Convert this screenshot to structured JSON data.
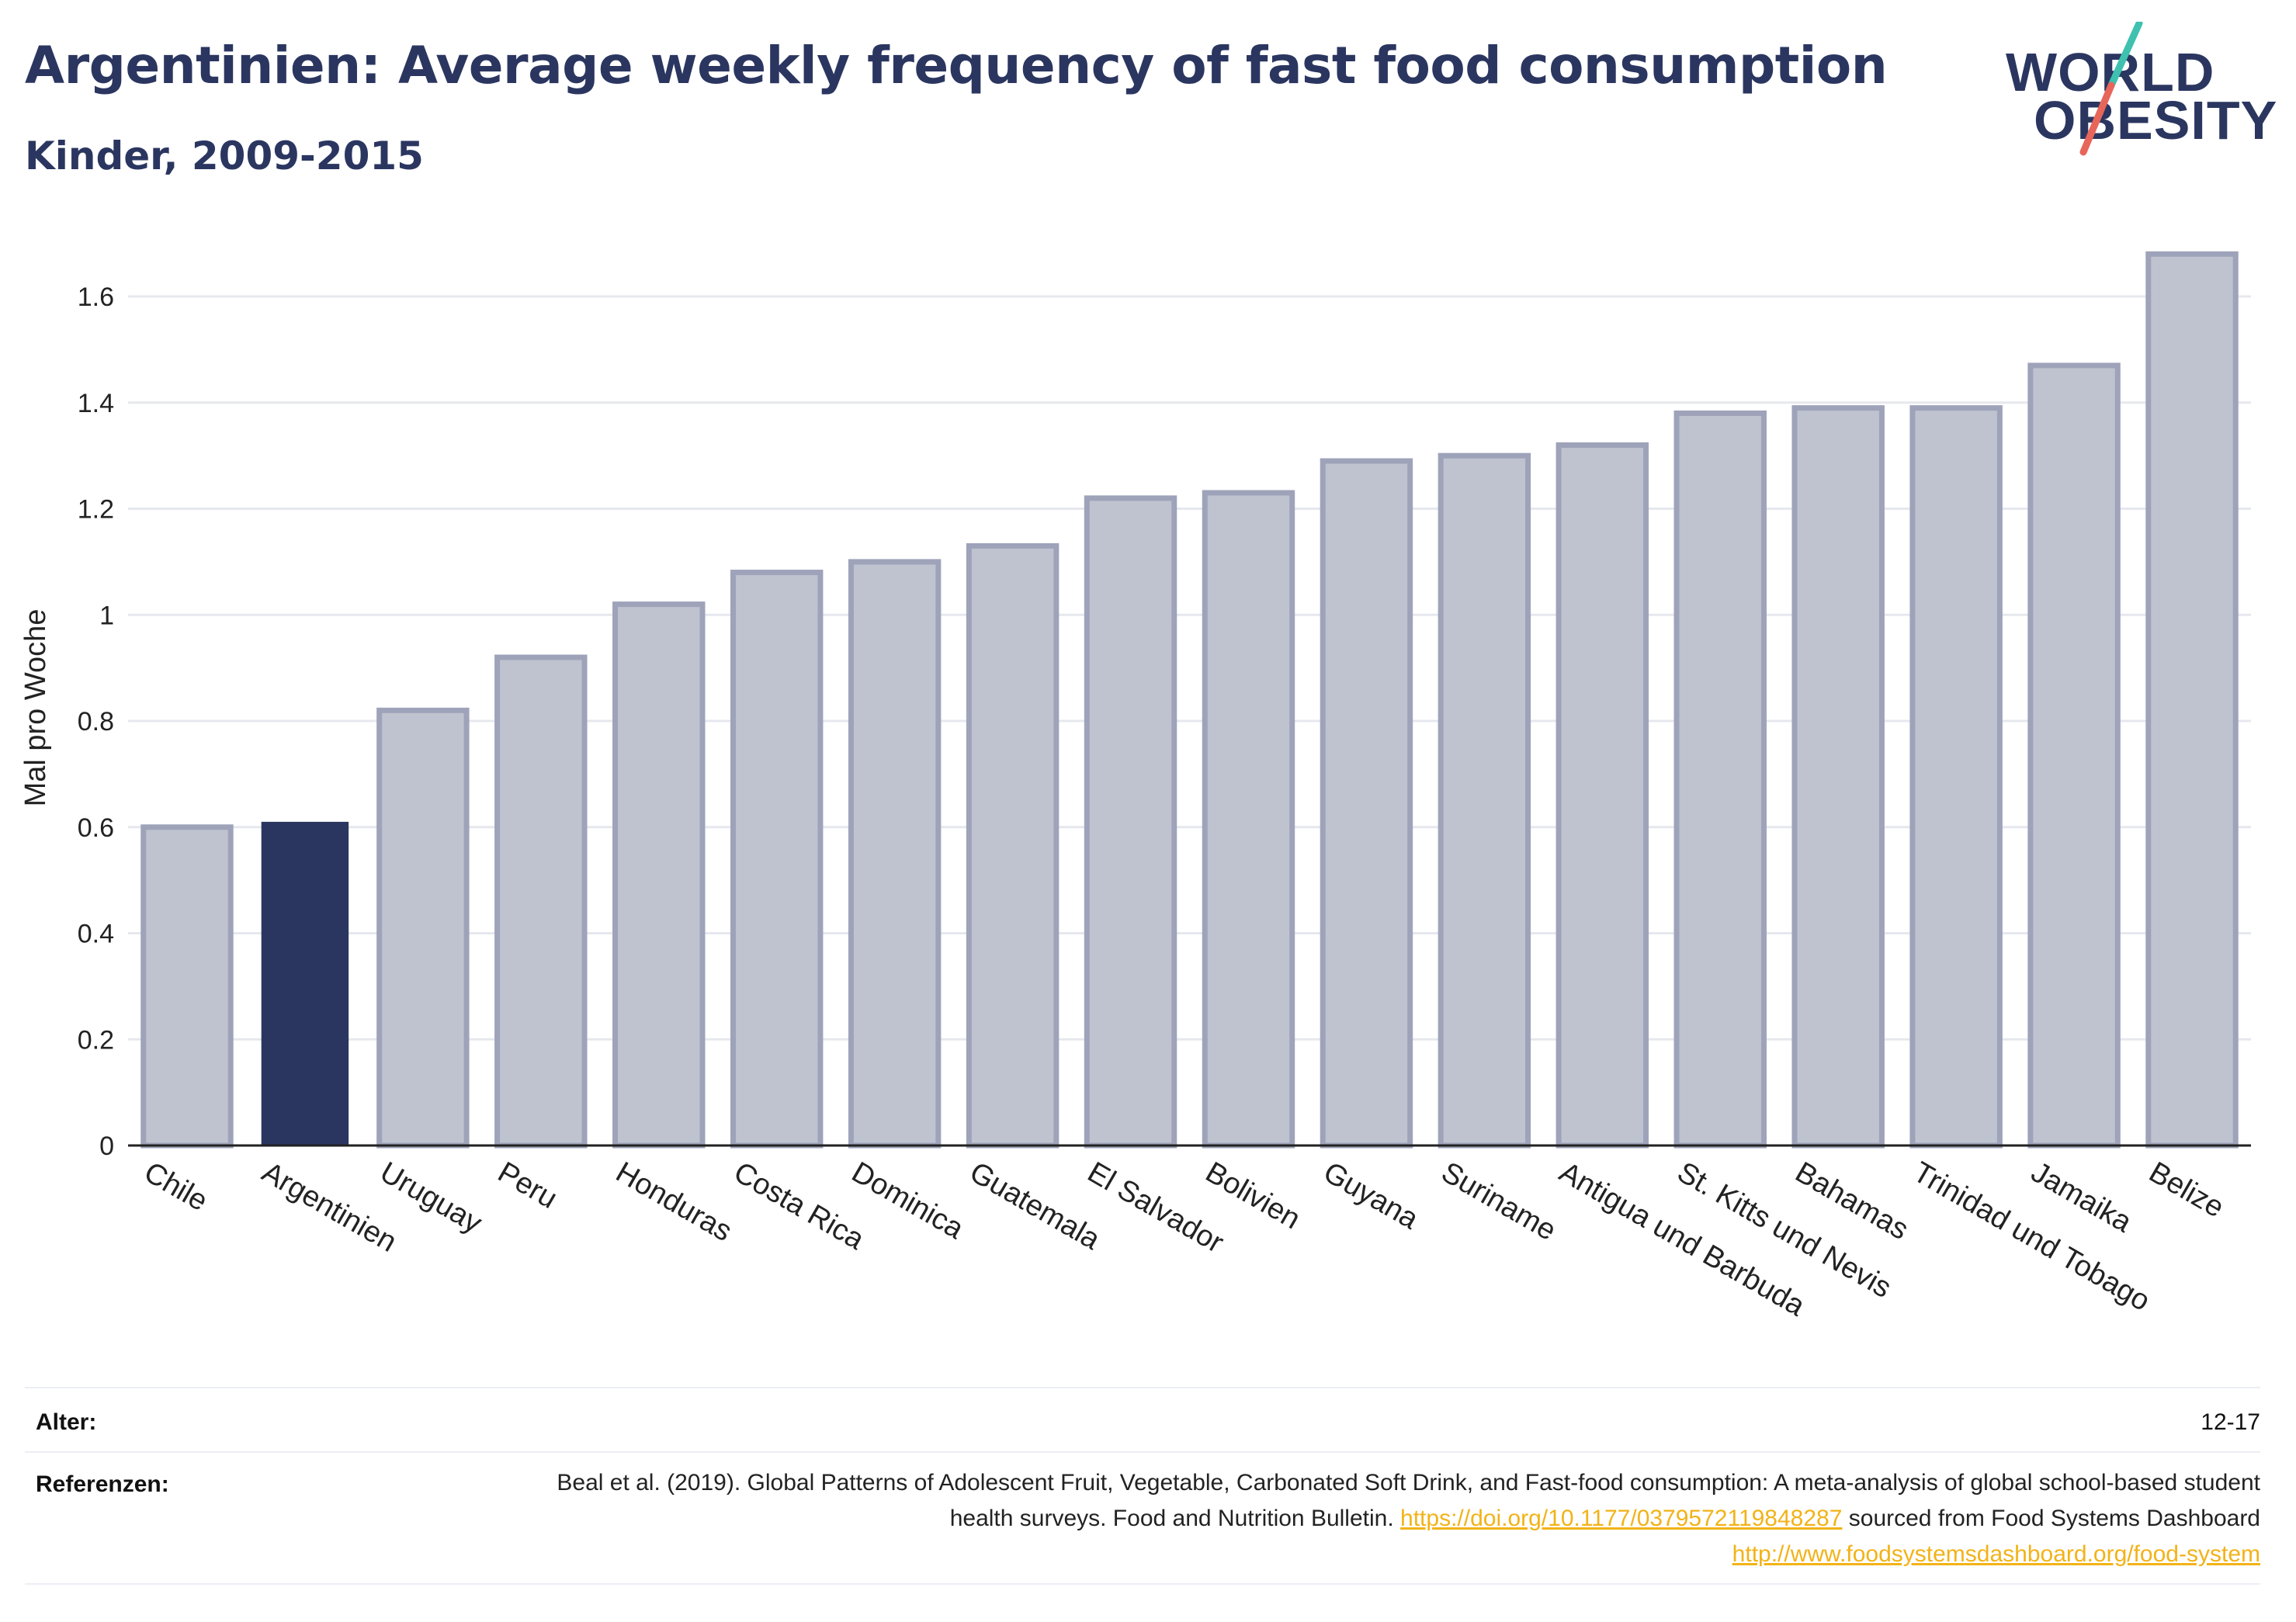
{
  "header": {
    "title": "Argentinien: Average weekly frequency of fast food consumption",
    "subtitle": "Kinder, 2009-2015"
  },
  "logo": {
    "line1": "WORLD",
    "line2": "OBESITY",
    "slash_colors": [
      "#3fc1b0",
      "#e8655a"
    ]
  },
  "chart_data": {
    "type": "bar",
    "categories": [
      "Chile",
      "Argentinien",
      "Uruguay",
      "Peru",
      "Honduras",
      "Costa Rica",
      "Dominica",
      "Guatemala",
      "El Salvador",
      "Bolivien",
      "Guyana",
      "Suriname",
      "Antigua und Barbuda",
      "St. Kitts und Nevis",
      "Bahamas",
      "Trinidad und Tobago",
      "Jamaika",
      "Belize"
    ],
    "values": [
      0.6,
      0.61,
      0.82,
      0.92,
      1.02,
      1.08,
      1.1,
      1.13,
      1.22,
      1.23,
      1.29,
      1.3,
      1.32,
      1.38,
      1.39,
      1.39,
      1.47,
      1.68
    ],
    "highlight": "Argentinien",
    "ylabel": "Mal pro Woche",
    "ylim": [
      0,
      1.72
    ],
    "yticks": [
      0,
      0.2,
      0.4,
      0.6,
      0.8,
      1,
      1.2,
      1.4,
      1.6
    ],
    "ytick_labels": [
      "0",
      "0.2",
      "0.4",
      "0.6",
      "0.8",
      "1",
      "1.2",
      "1.4",
      "1.6"
    ],
    "grid": true,
    "colors": {
      "bar": "#bfc3cf",
      "bar_stroke": "#9ea3ba",
      "highlight": "#2b3660",
      "grid": "#e6e8ee",
      "axis": "#222222"
    }
  },
  "footer": {
    "age_label": "Alter:",
    "age_value": "12-17",
    "ref_label": "Referenzen:",
    "ref_text_1": "Beal et al. (2019). Global Patterns of Adolescent Fruit, Vegetable, Carbonated Soft Drink, and Fast-food consumption: A meta-analysis of global school-based student health surveys. Food and Nutrition Bulletin.",
    "ref_link_1": "https://doi.org/10.1177/0379572119848287",
    "ref_text_2": "sourced from Food Systems Dashboard",
    "ref_link_2": "http://www.foodsystemsdashboard.org/food-system"
  }
}
